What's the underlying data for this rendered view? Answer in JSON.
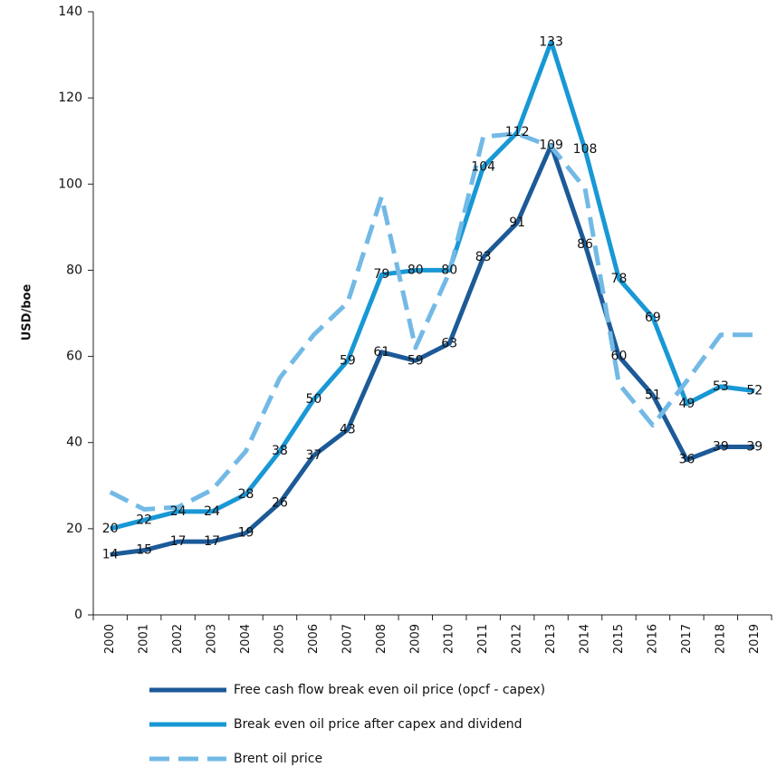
{
  "chart_data": {
    "type": "line",
    "y_label": "USD/boe",
    "categories": [
      "2000",
      "2001",
      "2002",
      "2003",
      "2004",
      "2005",
      "2006",
      "2007",
      "2008",
      "2009",
      "2010",
      "2011",
      "2012",
      "2013",
      "2014",
      "2015",
      "2016",
      "2017",
      "2018",
      "2019"
    ],
    "ylim": [
      0,
      140
    ],
    "yticks": [
      0,
      20,
      40,
      60,
      80,
      100,
      120,
      140
    ],
    "series": [
      {
        "name": "Free cash flow break even oil price (opcf - capex)",
        "color": "#1c5a98",
        "style": "solid",
        "show_labels": true,
        "values": [
          14,
          15,
          17,
          17,
          19,
          26,
          37,
          43,
          61,
          59,
          63,
          83,
          91,
          109,
          86,
          60,
          51,
          36,
          39,
          39
        ]
      },
      {
        "name": "Break even oil price after capex and dividend",
        "color": "#1898d5",
        "style": "solid",
        "show_labels": true,
        "values": [
          20,
          22,
          24,
          24,
          28,
          38,
          50,
          59,
          79,
          80,
          80,
          104,
          112,
          133,
          108,
          78,
          69,
          49,
          53,
          52
        ]
      },
      {
        "name": "Brent oil price",
        "color": "#72b9e6",
        "style": "dashed",
        "show_labels": false,
        "values": [
          28.5,
          24.5,
          25,
          29,
          38,
          55,
          65,
          72.5,
          97,
          62,
          79.5,
          111,
          111.7,
          108.7,
          99,
          53.6,
          44,
          54.3,
          65,
          65
        ]
      }
    ]
  }
}
